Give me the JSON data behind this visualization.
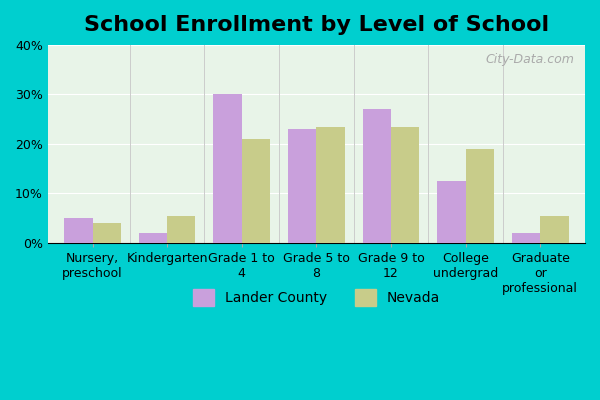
{
  "title": "School Enrollment by Level of School",
  "categories": [
    "Nursery,\npreschool",
    "Kindergarten",
    "Grade 1 to\n4",
    "Grade 5 to\n8",
    "Grade 9 to\n12",
    "College\nundergrad",
    "Graduate\nor\nprofessional"
  ],
  "lander_county": [
    5.0,
    2.0,
    30.0,
    23.0,
    27.0,
    12.5,
    2.0
  ],
  "nevada": [
    4.0,
    5.5,
    21.0,
    23.5,
    23.5,
    19.0,
    5.5
  ],
  "lander_color": "#c9a0dc",
  "nevada_color": "#c8cc8a",
  "background_top": "#e8f5e9",
  "background_bottom": "#f5f0ff",
  "ylim": [
    0,
    40
  ],
  "yticks": [
    0,
    10,
    20,
    30,
    40
  ],
  "legend_lander": "Lander County",
  "legend_nevada": "Nevada",
  "bar_width": 0.38,
  "title_fontsize": 16,
  "tick_fontsize": 9,
  "legend_fontsize": 10
}
